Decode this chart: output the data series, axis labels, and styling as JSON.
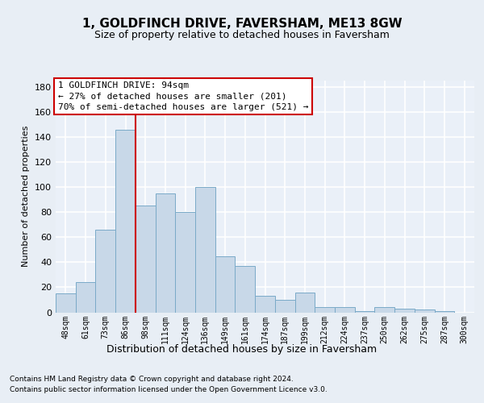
{
  "title": "1, GOLDFINCH DRIVE, FAVERSHAM, ME13 8GW",
  "subtitle": "Size of property relative to detached houses in Faversham",
  "xlabel": "Distribution of detached houses by size in Faversham",
  "ylabel": "Number of detached properties",
  "categories": [
    "48sqm",
    "61sqm",
    "73sqm",
    "86sqm",
    "98sqm",
    "111sqm",
    "124sqm",
    "136sqm",
    "149sqm",
    "161sqm",
    "174sqm",
    "187sqm",
    "199sqm",
    "212sqm",
    "224sqm",
    "237sqm",
    "250sqm",
    "262sqm",
    "275sqm",
    "287sqm",
    "300sqm"
  ],
  "values": [
    15,
    24,
    66,
    146,
    85,
    95,
    80,
    100,
    45,
    37,
    13,
    10,
    16,
    4,
    4,
    1,
    4,
    3,
    2,
    1,
    0
  ],
  "bar_color": "#c8d8e8",
  "bar_edge_color": "#7aaac8",
  "annotation_title": "1 GOLDFINCH DRIVE: 94sqm",
  "annotation_line1": "← 27% of detached houses are smaller (201)",
  "annotation_line2": "70% of semi-detached houses are larger (521) →",
  "annotation_box_color": "#ffffff",
  "annotation_box_edge": "#cc0000",
  "vline_color": "#cc0000",
  "vline_x": 3.5,
  "ylim": [
    0,
    185
  ],
  "yticks": [
    0,
    20,
    40,
    60,
    80,
    100,
    120,
    140,
    160,
    180
  ],
  "footer1": "Contains HM Land Registry data © Crown copyright and database right 2024.",
  "footer2": "Contains public sector information licensed under the Open Government Licence v3.0.",
  "bg_color": "#e8eef5",
  "plot_bg_color": "#eaf0f8",
  "grid_color": "#ffffff",
  "title_fontsize": 11,
  "subtitle_fontsize": 9,
  "ylabel_fontsize": 8,
  "xlabel_fontsize": 9,
  "tick_fontsize": 7,
  "footer_fontsize": 6.5,
  "annot_fontsize": 8
}
